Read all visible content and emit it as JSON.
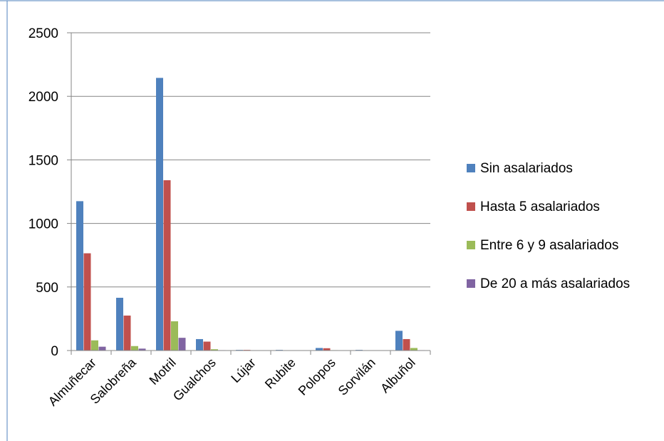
{
  "chart_data": {
    "type": "bar",
    "categories": [
      "Almuñecar",
      "Salobreña",
      "Motril",
      "Gualchos",
      "Lújar",
      "Rubite",
      "Polopos",
      "Sorvilán",
      "Albuñol"
    ],
    "series": [
      {
        "name": "Sin asalariados",
        "color": "#4f81bd",
        "values": [
          1175,
          415,
          2145,
          90,
          5,
          5,
          20,
          5,
          155
        ]
      },
      {
        "name": "Hasta 5 asalariados",
        "color": "#c0504d",
        "values": [
          765,
          275,
          1340,
          70,
          5,
          2,
          18,
          2,
          90
        ]
      },
      {
        "name": "Entre 6 y 9 asalariados",
        "color": "#9bbb59",
        "values": [
          80,
          35,
          230,
          10,
          0,
          0,
          3,
          0,
          20
        ]
      },
      {
        "name": "De 20 a más asalariados",
        "color": "#8064a2",
        "values": [
          30,
          15,
          100,
          3,
          0,
          0,
          0,
          0,
          3
        ]
      }
    ],
    "ylim": [
      0,
      2500
    ],
    "yticks": [
      0,
      500,
      1000,
      1500,
      2000,
      2500
    ],
    "grid": true,
    "legend_position": "right",
    "title": "",
    "xlabel": "",
    "ylabel": ""
  }
}
